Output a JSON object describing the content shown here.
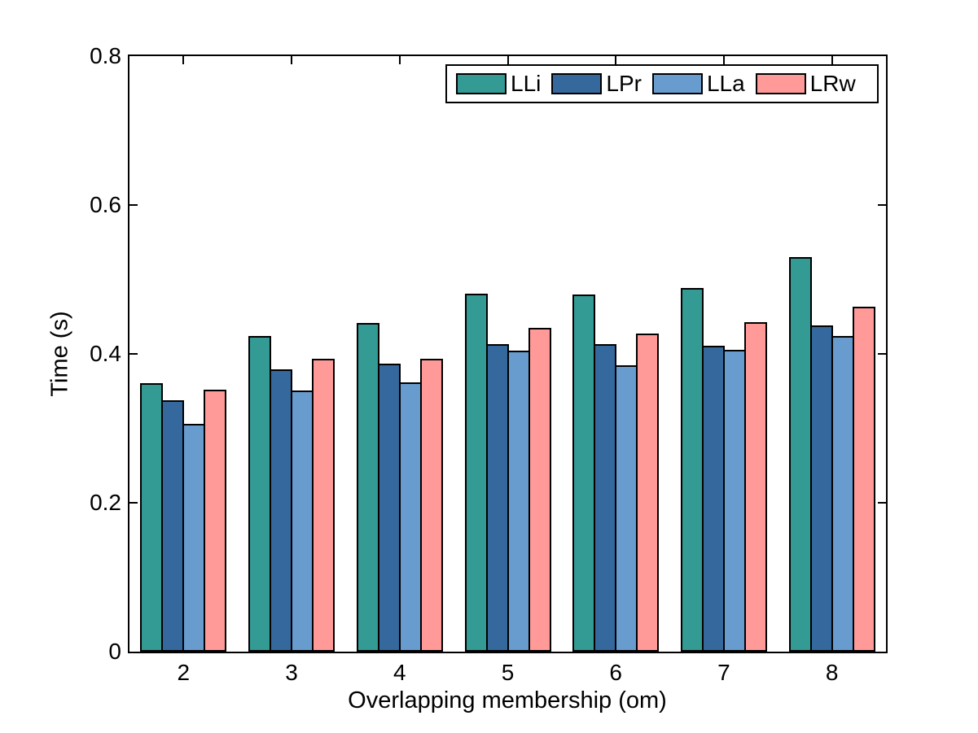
{
  "figure": {
    "background_color": "#ffffff",
    "axes_box_color": "#000000"
  },
  "chart_data": {
    "type": "bar",
    "title": "",
    "xlabel": "Overlapping membership (om)",
    "ylabel": "Time (s)",
    "categories": [
      "2",
      "3",
      "4",
      "5",
      "6",
      "7",
      "8"
    ],
    "series": [
      {
        "name": "LLi",
        "color": "#339a94",
        "values": [
          0.361,
          0.424,
          0.442,
          0.481,
          0.48,
          0.489,
          0.53
        ]
      },
      {
        "name": "LPr",
        "color": "#35689c",
        "values": [
          0.338,
          0.379,
          0.387,
          0.413,
          0.413,
          0.411,
          0.438
        ]
      },
      {
        "name": "LLa",
        "color": "#689bce",
        "values": [
          0.306,
          0.351,
          0.362,
          0.404,
          0.385,
          0.405,
          0.424
        ]
      },
      {
        "name": "LRw",
        "color": "#ff9a99",
        "values": [
          0.352,
          0.393,
          0.393,
          0.435,
          0.427,
          0.443,
          0.463
        ]
      }
    ],
    "ylim": [
      0,
      0.8
    ],
    "yticks": [
      "0",
      "0.2",
      "0.4",
      "0.6",
      "0.8"
    ],
    "grid": false,
    "legend_position": "inside-top",
    "bar_edge_color": "#000000",
    "tick_direction": "in"
  }
}
